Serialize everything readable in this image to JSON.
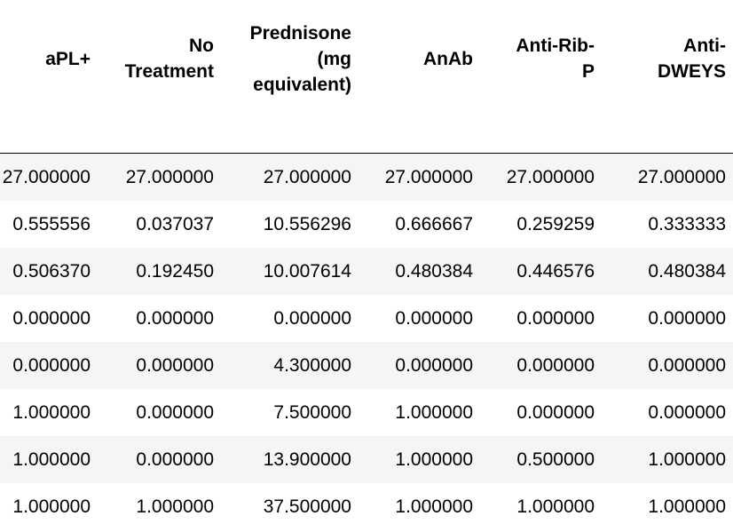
{
  "table": {
    "columns": [
      [
        "aPL+"
      ],
      [
        "No",
        "Treatment"
      ],
      [
        "Prednisone",
        "(mg",
        "equivalent)"
      ],
      [
        "AnAb"
      ],
      [
        "Anti-Rib-",
        "P"
      ],
      [
        "Anti-",
        "DWEYS"
      ]
    ],
    "rows": [
      [
        "27.000000",
        "27.000000",
        "27.000000",
        "27.000000",
        "27.000000",
        "27.000000"
      ],
      [
        "0.555556",
        "0.037037",
        "10.556296",
        "0.666667",
        "0.259259",
        "0.333333"
      ],
      [
        "0.506370",
        "0.192450",
        "10.007614",
        "0.480384",
        "0.446576",
        "0.480384"
      ],
      [
        "0.000000",
        "0.000000",
        "0.000000",
        "0.000000",
        "0.000000",
        "0.000000"
      ],
      [
        "0.000000",
        "0.000000",
        "4.300000",
        "0.000000",
        "0.000000",
        "0.000000"
      ],
      [
        "1.000000",
        "0.000000",
        "7.500000",
        "1.000000",
        "0.000000",
        "0.000000"
      ],
      [
        "1.000000",
        "0.000000",
        "13.900000",
        "1.000000",
        "0.500000",
        "1.000000"
      ],
      [
        "1.000000",
        "1.000000",
        "37.500000",
        "1.000000",
        "1.000000",
        "1.000000"
      ]
    ]
  },
  "colors": {
    "stripe": "#f5f5f5",
    "background": "#ffffff",
    "rule": "#000000",
    "text": "#000000"
  }
}
